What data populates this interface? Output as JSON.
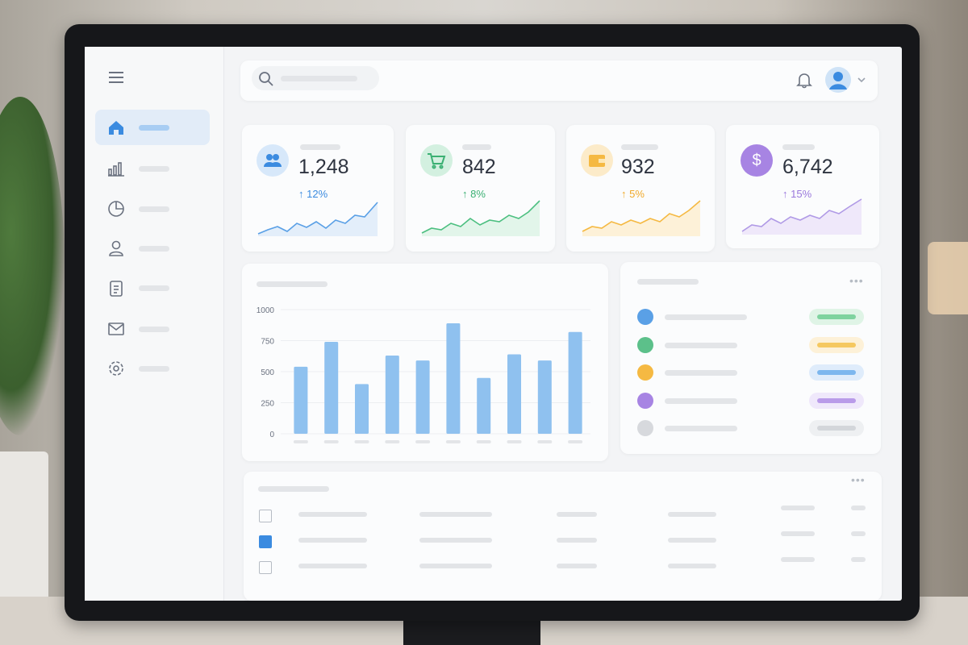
{
  "stats": [
    {
      "value": "1,248",
      "change": "↑ 12%"
    },
    {
      "value": "842",
      "change": "↑ 8%"
    },
    {
      "value": "932",
      "change": "↑ 5%"
    },
    {
      "value": "6,742",
      "change": "↑ 15%"
    }
  ],
  "chart_data": {
    "type": "bar",
    "categories": [
      null,
      null,
      null,
      null,
      null,
      null,
      null,
      null,
      null,
      null
    ],
    "values": [
      540,
      740,
      400,
      630,
      590,
      890,
      450,
      640,
      590,
      820
    ],
    "color": "#8fc1ef",
    "ylim": [
      0,
      1000
    ],
    "yticks": [
      0,
      250,
      500,
      750,
      1000
    ],
    "grid": true
  }
}
